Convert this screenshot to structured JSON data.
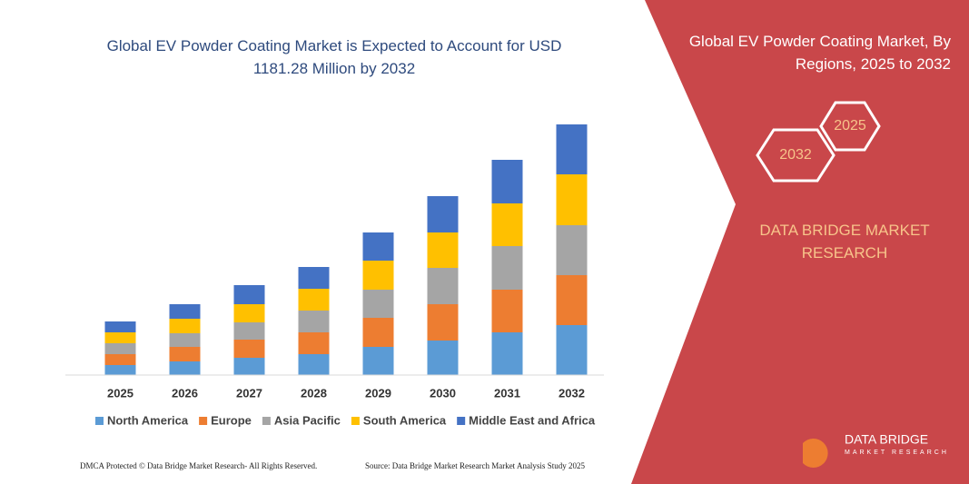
{
  "chart_data": {
    "type": "stacked-bar",
    "title": "Global EV Powder Coating Market is Expected to Account for USD 1181.28 Million by 2032",
    "categories": [
      "2025",
      "2026",
      "2027",
      "2028",
      "2029",
      "2030",
      "2031",
      "2032"
    ],
    "series": [
      {
        "name": "North America",
        "color": "#5b9bd5",
        "values": [
          11,
          15,
          19,
          23,
          31,
          38,
          47,
          55
        ]
      },
      {
        "name": "Europe",
        "color": "#ed7d31",
        "values": [
          12,
          16,
          20,
          24,
          32,
          40,
          47,
          55
        ]
      },
      {
        "name": "Asia Pacific",
        "color": "#a5a5a5",
        "values": [
          12,
          15,
          19,
          24,
          31,
          40,
          48,
          55
        ]
      },
      {
        "name": "South America",
        "color": "#ffc000",
        "values": [
          12,
          16,
          20,
          24,
          32,
          39,
          47,
          56
        ]
      },
      {
        "name": "Middle East and Africa",
        "color": "#4472c4",
        "values": [
          12,
          16,
          21,
          24,
          31,
          40,
          48,
          55
        ]
      }
    ],
    "ylim": [
      0,
      300
    ]
  },
  "panel": {
    "title": "Global EV Powder Coating Market, By Regions, 2025 to 2032",
    "hexagons": [
      "2025",
      "2032"
    ],
    "brand": "DATA BRIDGE MARKET RESEARCH",
    "logo": "DATA BRIDGE",
    "logo_sub": "MARKET RESEARCH"
  },
  "footer": {
    "left": "DMCA Protected © Data Bridge Market Research- All Rights Reserved.",
    "right": "Source: Data Bridge Market Research Market Analysis Study 2025"
  }
}
